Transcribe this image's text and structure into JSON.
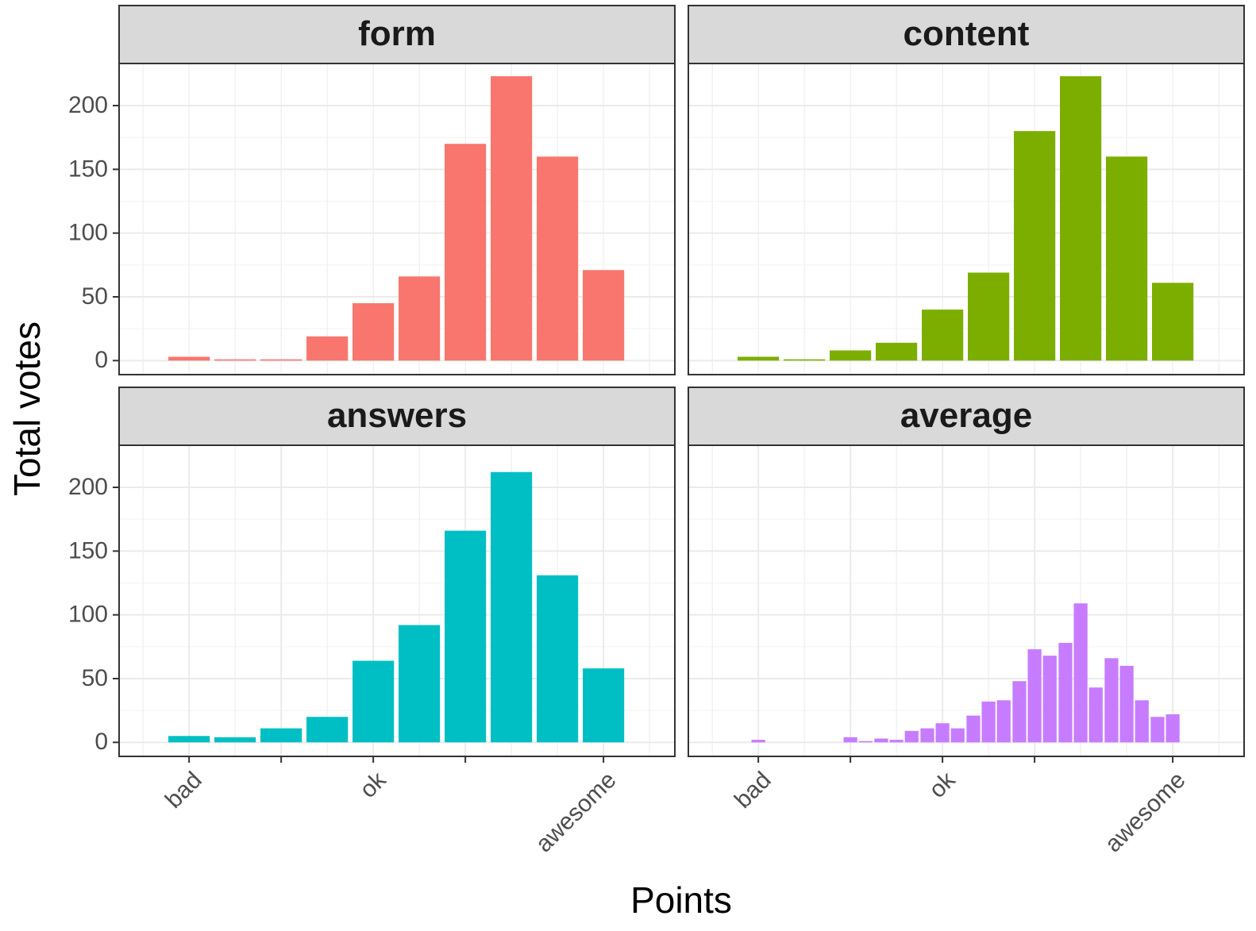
{
  "y_label": "Total votes",
  "x_label": "Points",
  "chart_data": [
    {
      "type": "bar",
      "title": "form",
      "color": "#F8766D",
      "x": [
        1,
        2,
        3,
        4,
        5,
        6,
        7,
        8,
        9,
        10
      ],
      "values": [
        3,
        1,
        1,
        19,
        45,
        66,
        170,
        223,
        160,
        71
      ],
      "xlim": [
        -0.52,
        11.55
      ],
      "ylim": [
        -11,
        233
      ],
      "yticks": [
        0,
        50,
        100,
        150,
        200
      ],
      "grid": true
    },
    {
      "type": "bar",
      "title": "content",
      "color": "#7CAE00",
      "x": [
        1,
        2,
        3,
        4,
        5,
        6,
        7,
        8,
        9,
        10
      ],
      "values": [
        3,
        1,
        8,
        14,
        40,
        69,
        180,
        223,
        160,
        61
      ],
      "xlim": [
        -0.52,
        11.55
      ],
      "ylim": [
        -11,
        233
      ],
      "yticks": [
        0,
        50,
        100,
        150,
        200
      ],
      "grid": true
    },
    {
      "type": "bar",
      "title": "answers",
      "color": "#00BFC4",
      "x": [
        1,
        2,
        3,
        4,
        5,
        6,
        7,
        8,
        9,
        10
      ],
      "values": [
        5,
        4,
        11,
        20,
        64,
        92,
        166,
        212,
        131,
        58
      ],
      "xlim": [
        -0.52,
        11.55
      ],
      "ylim": [
        -11,
        233
      ],
      "yticks": [
        0,
        50,
        100,
        150,
        200
      ],
      "grid": true,
      "xticks": [
        {
          "value": 1,
          "label": "bad"
        },
        {
          "value": 3,
          "label": null
        },
        {
          "value": 5,
          "label": "ok"
        },
        {
          "value": 7,
          "label": null
        },
        {
          "value": 10,
          "label": "awesome"
        }
      ]
    },
    {
      "type": "bar",
      "title": "average",
      "color": "#C77CFF",
      "x": [
        1,
        3,
        3.33,
        3.67,
        4,
        4.33,
        4.67,
        5,
        5.33,
        5.67,
        6,
        6.33,
        6.67,
        7,
        7.33,
        7.67,
        8,
        8.33,
        8.67,
        9,
        9.33,
        9.67,
        10
      ],
      "values": [
        2,
        4,
        1,
        3,
        2,
        9,
        11,
        15,
        11,
        21,
        32,
        33,
        48,
        73,
        68,
        78,
        109,
        43,
        66,
        60,
        33,
        20,
        22
      ],
      "xlim": [
        -0.52,
        11.55
      ],
      "ylim": [
        -11,
        233
      ],
      "yticks": [
        0,
        50,
        100,
        150,
        200
      ],
      "grid": true,
      "xticks": [
        {
          "value": 1,
          "label": "bad"
        },
        {
          "value": 3,
          "label": null
        },
        {
          "value": 5,
          "label": "ok"
        },
        {
          "value": 7,
          "label": null
        },
        {
          "value": 10,
          "label": "awesome"
        }
      ]
    }
  ]
}
